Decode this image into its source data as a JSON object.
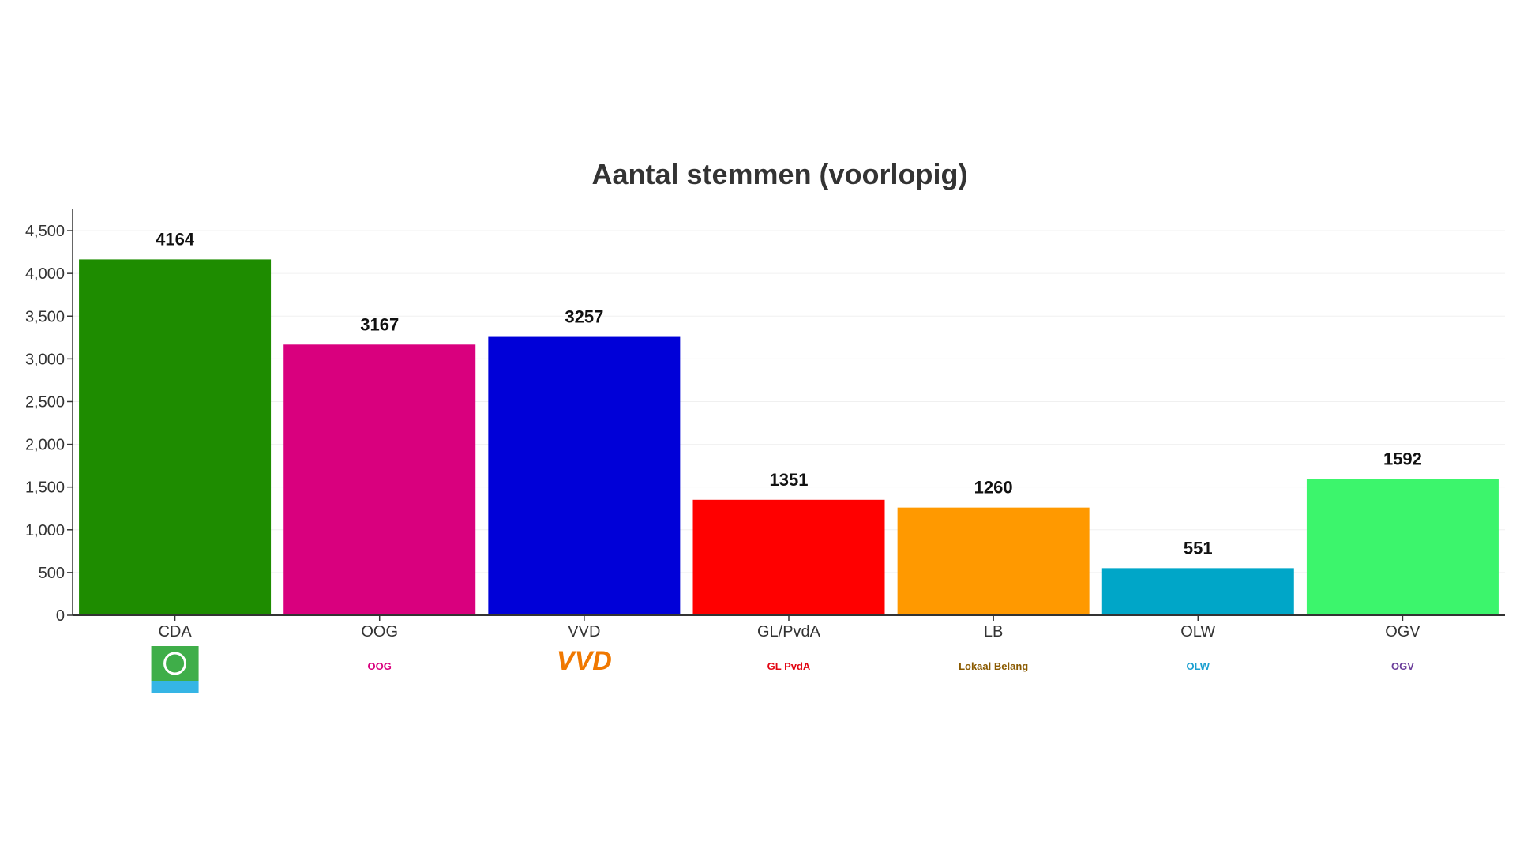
{
  "chart_data": {
    "type": "bar",
    "title": "Aantal stemmen (voorlopig)",
    "xlabel": "",
    "ylabel": "",
    "categories": [
      "CDA",
      "OOG",
      "VVD",
      "GL/PvdA",
      "LB",
      "OLW",
      "OGV"
    ],
    "values": [
      4164,
      3167,
      3257,
      1351,
      1260,
      551,
      1592
    ],
    "colors": [
      "#1e8c00",
      "#d9007e",
      "#0000d8",
      "#ff0000",
      "#ff9900",
      "#00a6c8",
      "#3cf56c"
    ],
    "logos": [
      "CDA",
      "OOG",
      "VVD",
      "GL PvdA",
      "Lokaal Belang",
      "OLW",
      "OGV"
    ],
    "ylim": [
      0,
      4750
    ],
    "yticks": [
      0,
      500,
      1000,
      1500,
      2000,
      2500,
      3000,
      3500,
      4000,
      4500
    ],
    "ytick_labels": [
      "0",
      "500",
      "1,000",
      "1,500",
      "2,000",
      "2,500",
      "3,000",
      "3,500",
      "4,000",
      "4,500"
    ],
    "grid": true,
    "data_labels": true,
    "legend": "none"
  }
}
